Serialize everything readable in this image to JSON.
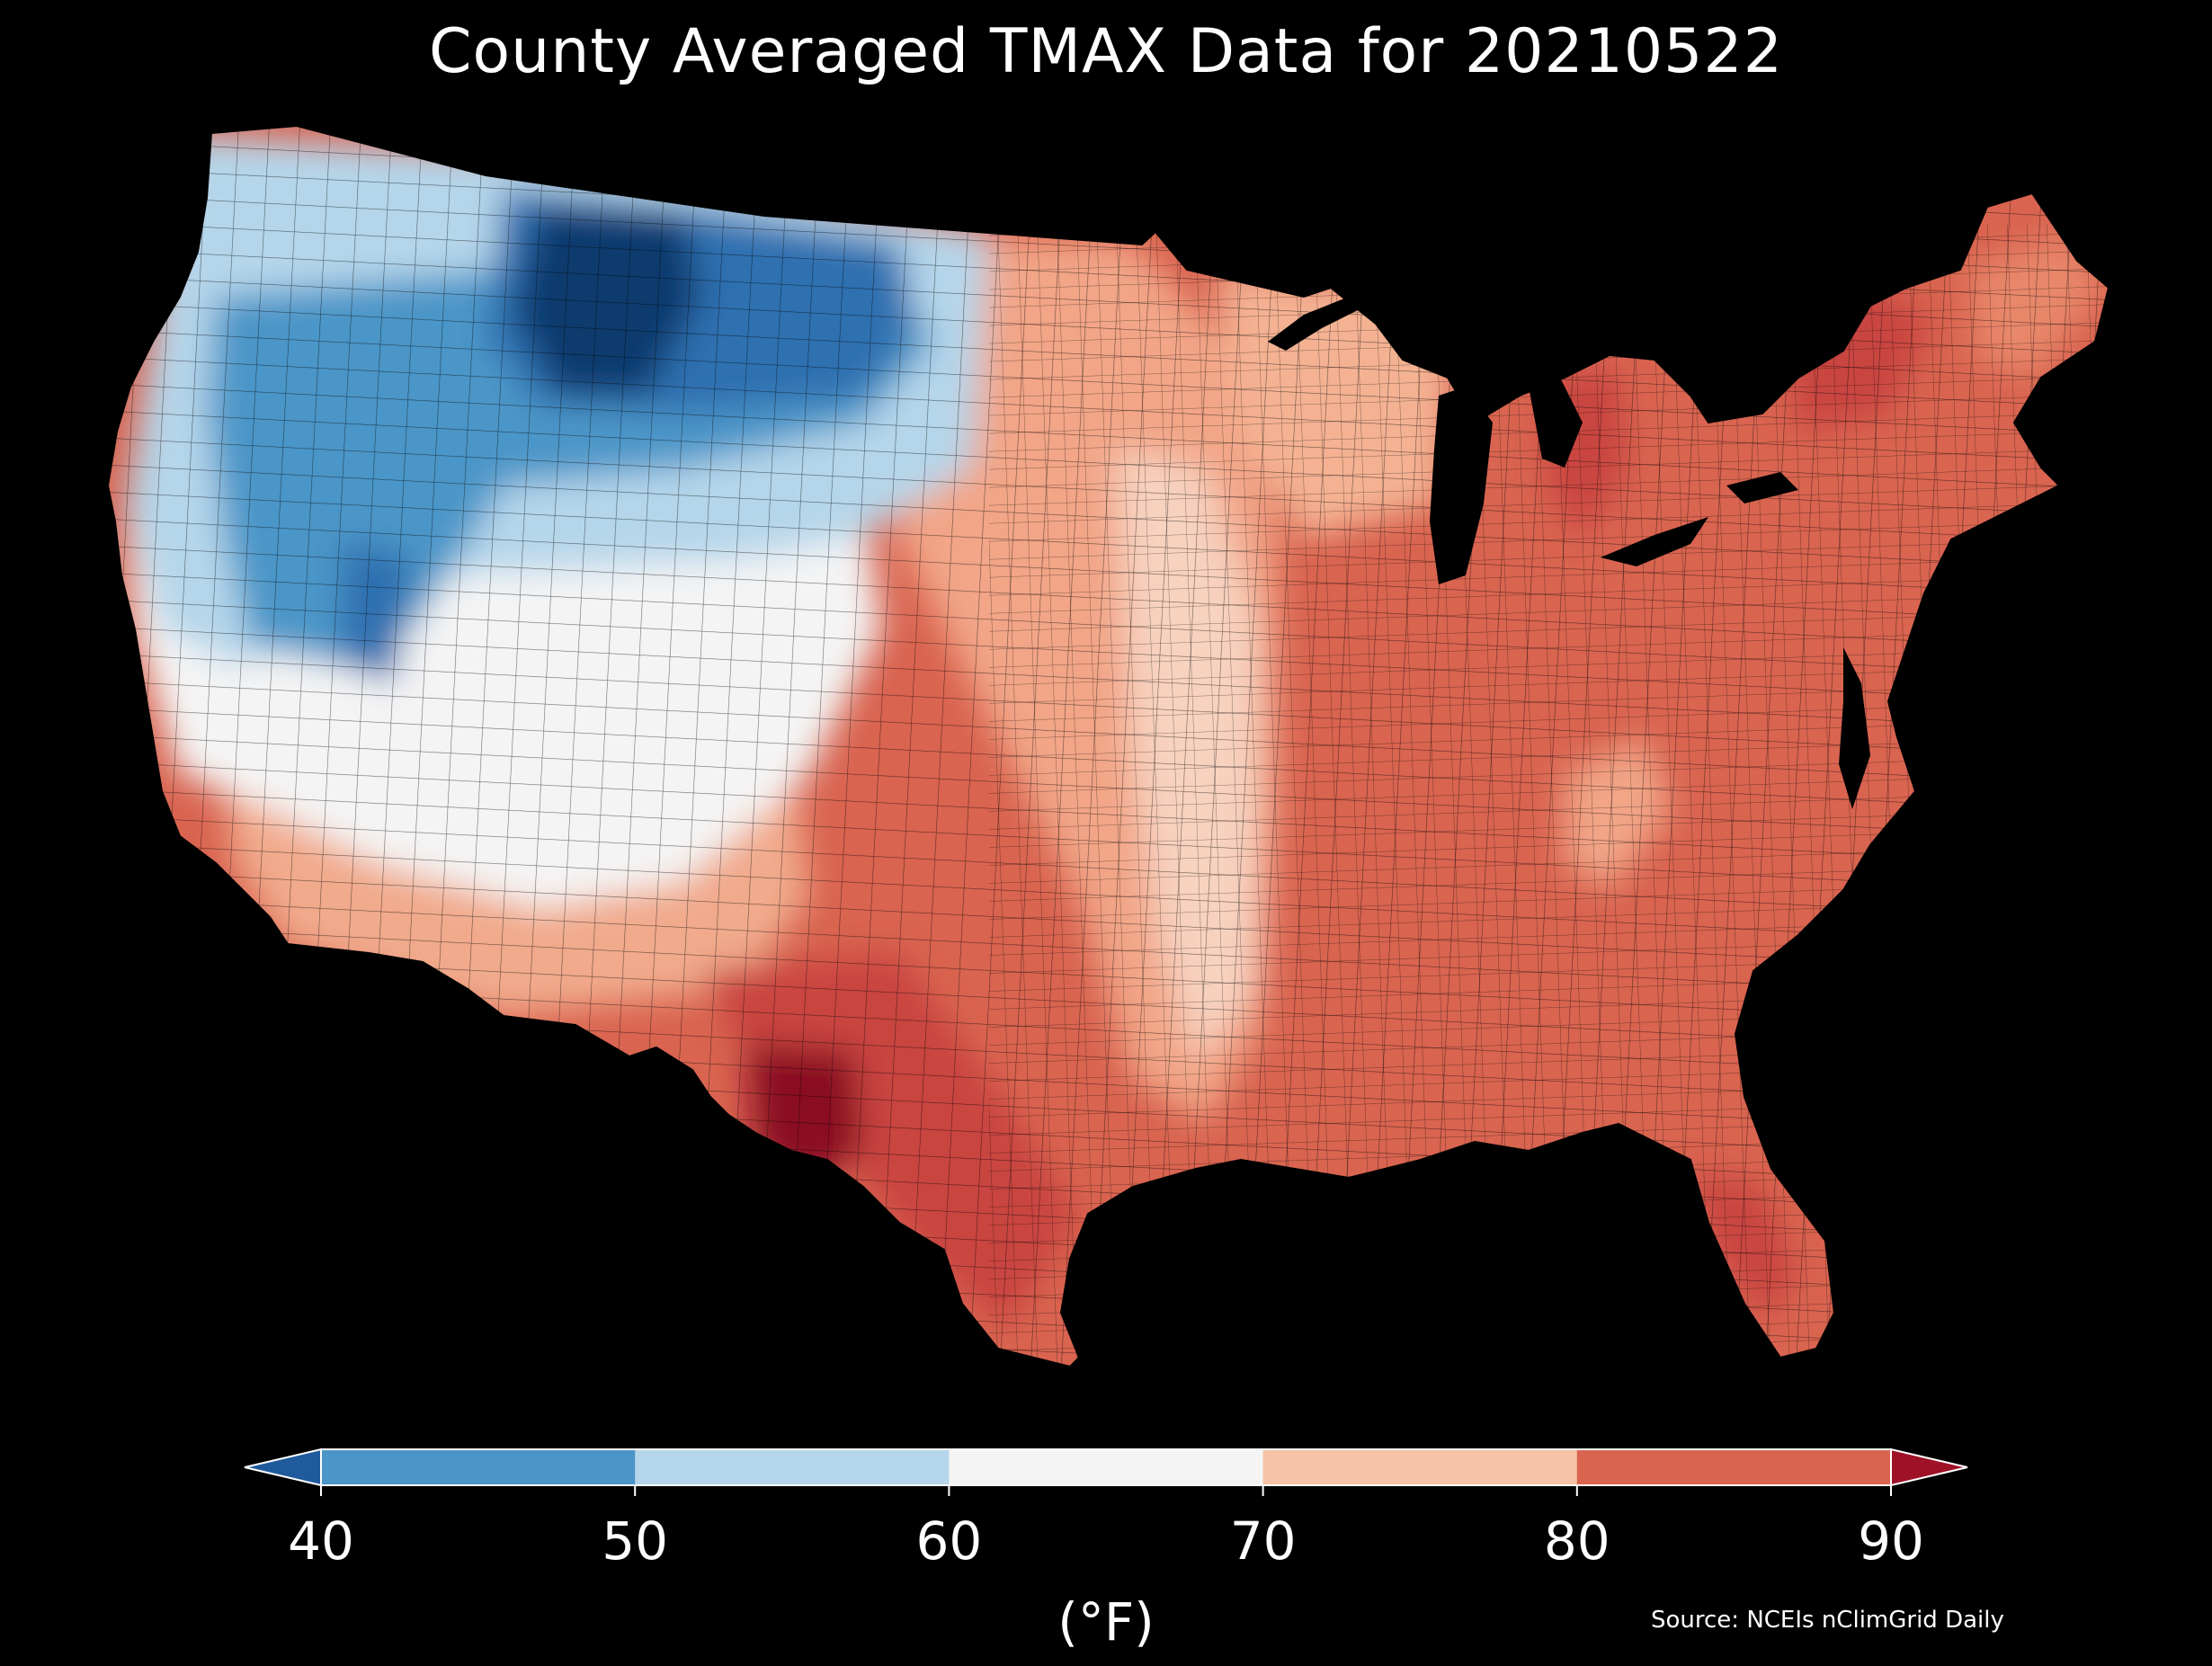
{
  "title": "County Averaged TMAX Data for 20210522",
  "colorbar": {
    "ticks": [
      "40",
      "50",
      "60",
      "70",
      "80",
      "90"
    ],
    "unit_label": "(°F)",
    "bins": [
      {
        "range": "<40",
        "color": "#1f5a9c"
      },
      {
        "range": "40-50",
        "color": "#4b96c8"
      },
      {
        "range": "50-60",
        "color": "#b5d6ea"
      },
      {
        "range": "60-70",
        "color": "#f4f4f4"
      },
      {
        "range": "70-80",
        "color": "#f7c2a6"
      },
      {
        "range": "80-90",
        "color": "#d96450"
      },
      {
        "range": ">90",
        "color": "#9e1127"
      }
    ]
  },
  "source": "Source: NCEIs nClimGrid Daily",
  "map": {
    "region": "Contiguous United States",
    "colors": {
      "dark_blue": "#0c3a6e",
      "blue": "#2d6fb0",
      "mid_blue": "#4b96c8",
      "light_blue": "#b5d6ea",
      "white": "#f4f4f4",
      "light_orange": "#f7c2a6",
      "orange": "#e8876a",
      "red": "#d96450",
      "dark_red": "#b32c33",
      "darkest_red": "#8a0e24",
      "water": "#000000"
    }
  }
}
